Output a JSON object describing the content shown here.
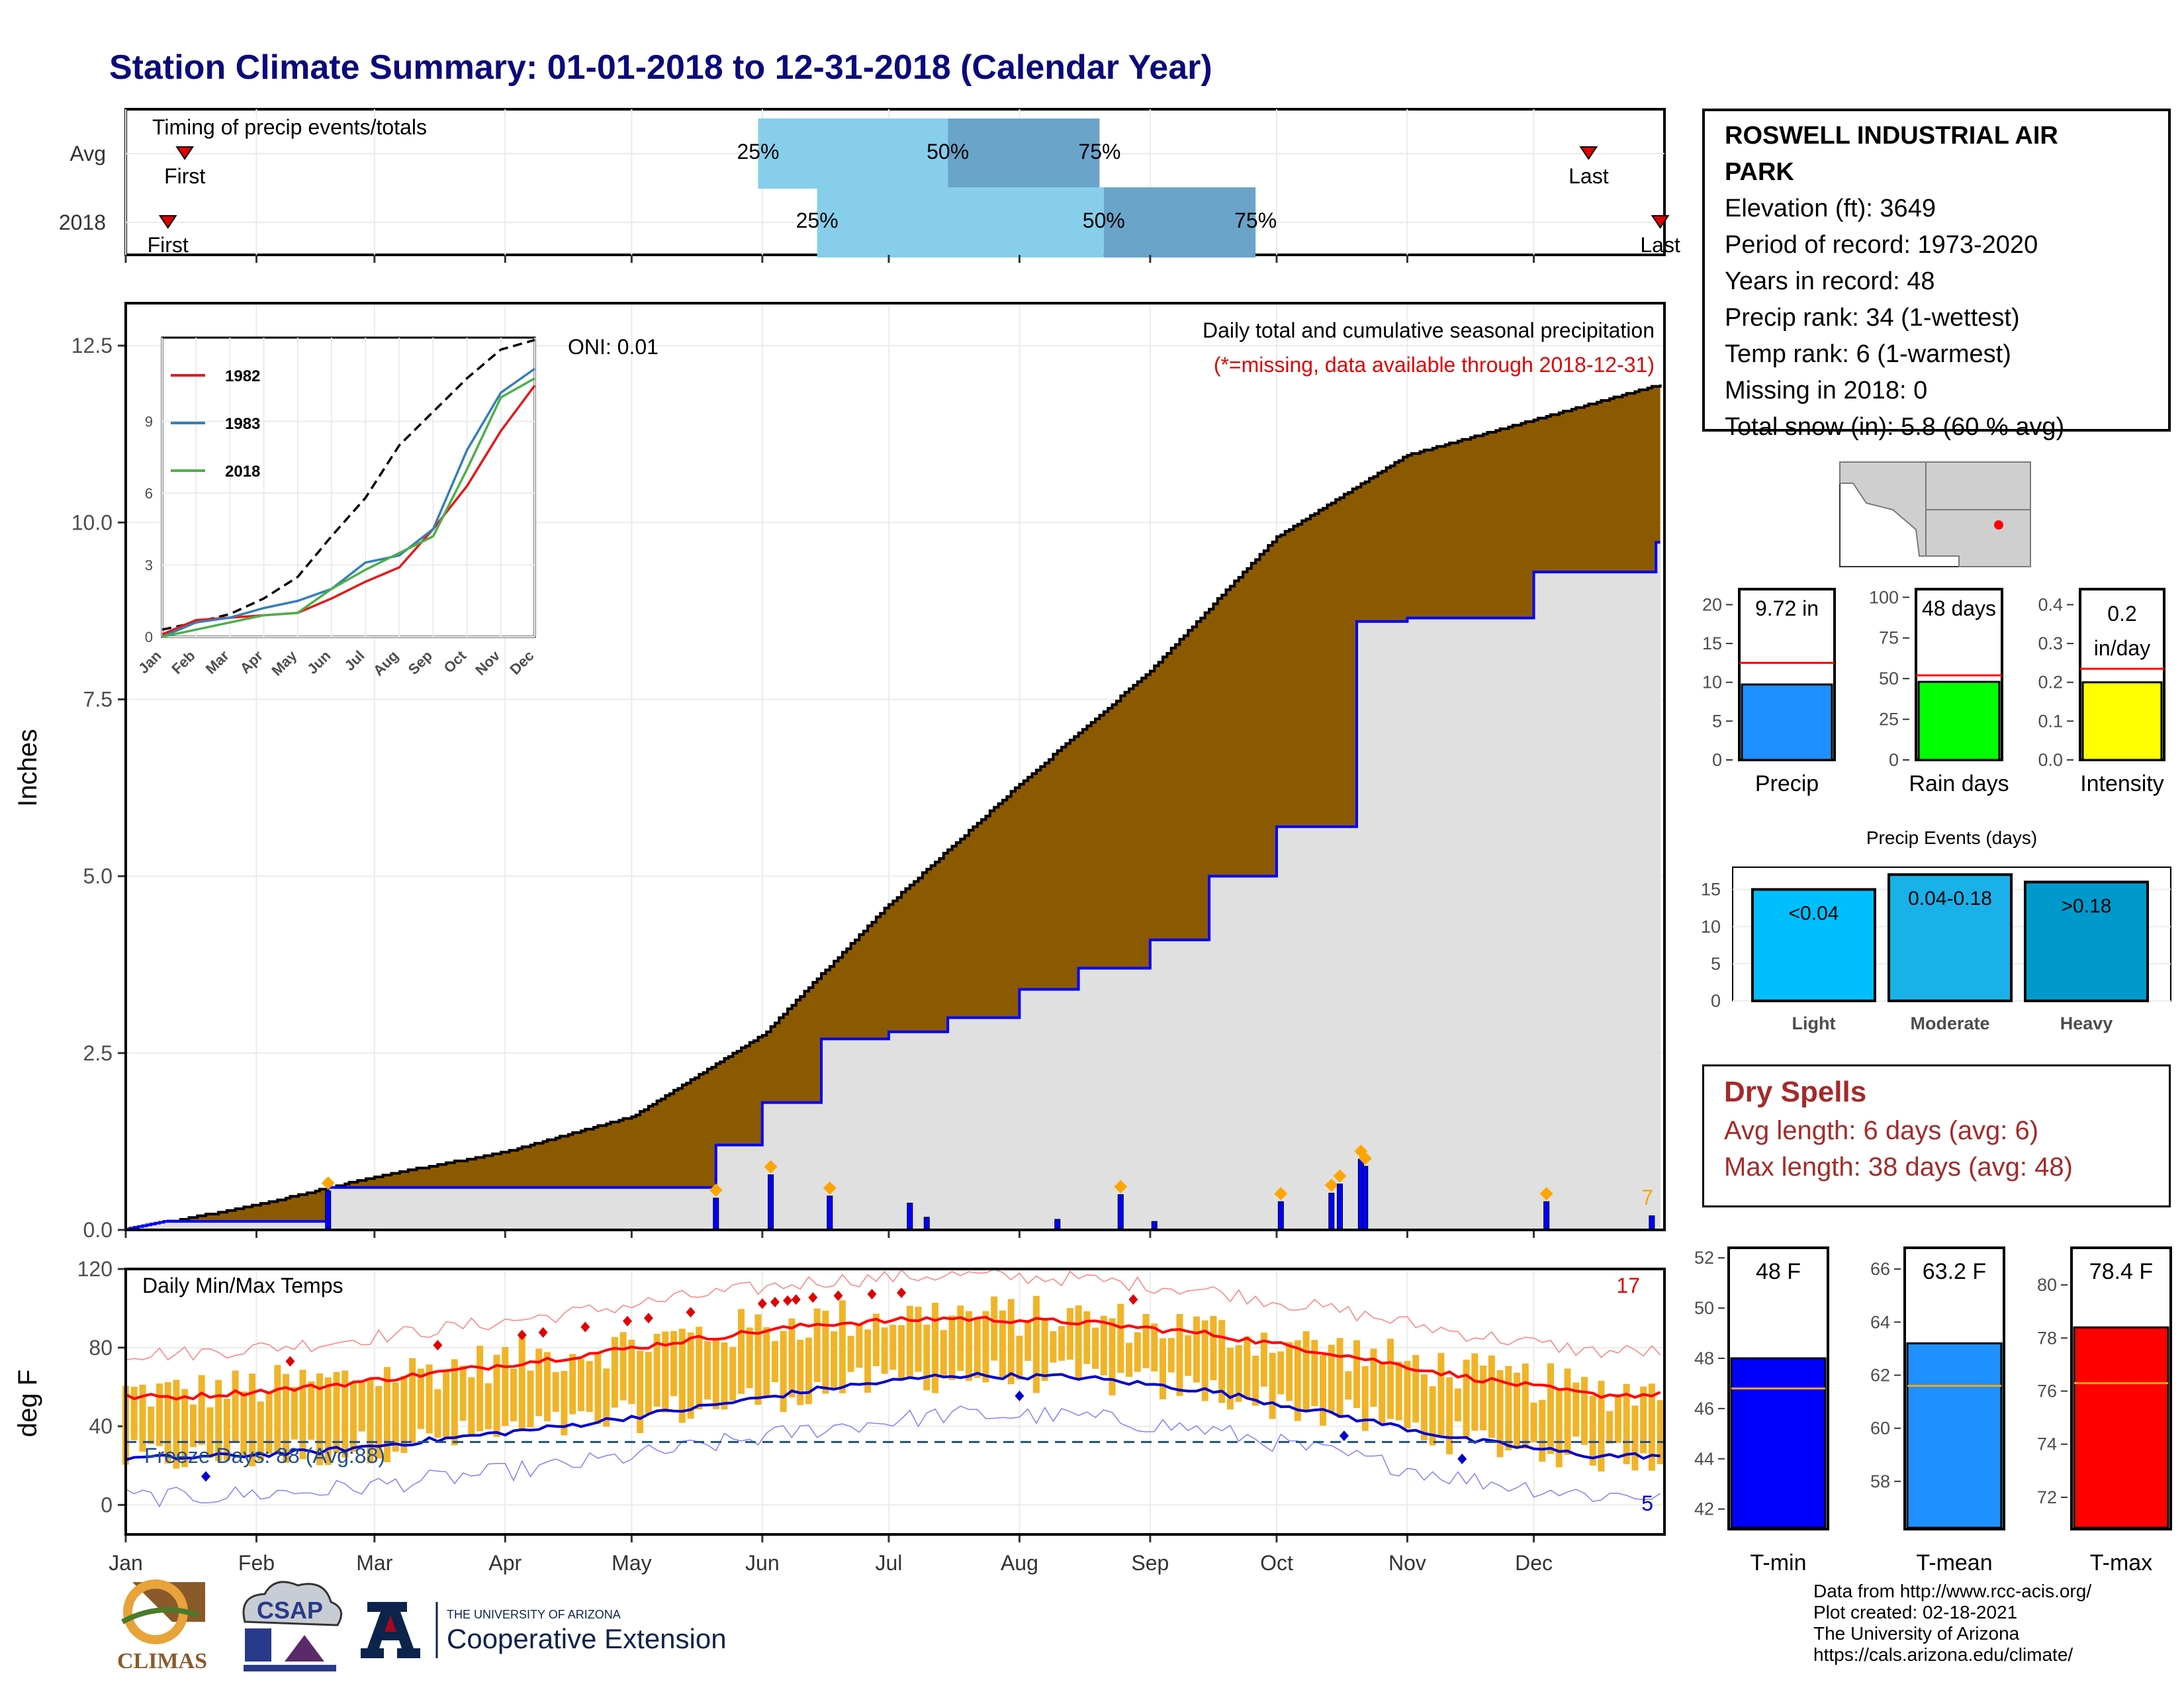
{
  "title": "Station Climate Summary: 01-01-2018 to 12-31-2018 (Calendar Year)",
  "timing": {
    "label": "Timing of precip events/totals",
    "rows": [
      "Avg",
      "2018"
    ],
    "first_label": "First",
    "last_label": "Last",
    "pct_labels": [
      "25%",
      "50%",
      "75%"
    ],
    "avg": {
      "first_doy": 15,
      "p25_doy": 151,
      "p50_doy": 196,
      "p75_doy": 232,
      "last_doy": 348
    },
    "y2018": {
      "first_doy": 11,
      "p25_doy": 165,
      "p50_doy": 233,
      "p75_doy": 269,
      "last_doy": 365
    }
  },
  "info": {
    "station": "ROSWELL INDUSTRIAL AIR PARK",
    "station_line1": "ROSWELL INDUSTRIAL AIR",
    "station_line2": "PARK",
    "lines": [
      "Elevation (ft): 3649",
      "Period of record: 1973-2020",
      "Years in record: 48",
      "Precip rank: 34 (1-wettest)",
      "Temp rank: 6 (1-warmest)",
      "Missing in 2018: 0",
      "Total snow (in): 5.8 (60 % avg)"
    ]
  },
  "precip_panel": {
    "ylabel": "Inches",
    "title": "Daily total and cumulative seasonal precipitation",
    "subtitle": "(*=missing, data available through 2018-12-31)",
    "oni": "ONI: 0.01",
    "yticks": [
      "0.0",
      "2.5",
      "5.0",
      "7.5",
      "10.0",
      "12.5"
    ],
    "corner_count": "7",
    "colors": {
      "avg_fill": "#8b5a00",
      "obs_fill": "#e0e0e0",
      "obs_line": "#0000ff",
      "bar": "#0000ff",
      "marker": "#ffa500"
    }
  },
  "months": [
    "Jan",
    "Feb",
    "Mar",
    "Apr",
    "May",
    "Jun",
    "Jul",
    "Aug",
    "Sep",
    "Oct",
    "Nov",
    "Dec"
  ],
  "inset": {
    "yticks": [
      "0",
      "3",
      "6",
      "9"
    ],
    "months": [
      "Jan",
      "Feb",
      "Mar",
      "Apr",
      "May",
      "Jun",
      "Jul",
      "Aug",
      "Sep",
      "Oct",
      "Nov",
      "Dec"
    ],
    "legend": [
      {
        "name": "1982",
        "color": "#e41a1c"
      },
      {
        "name": "1983",
        "color": "#377eb8"
      },
      {
        "name": "2018",
        "color": "#4daf4a"
      }
    ]
  },
  "temp_panel": {
    "ylabel": "deg F",
    "title": "Daily Min/Max Temps",
    "yticks": [
      "0",
      "40",
      "80",
      "120"
    ],
    "freeze_text": "Freeze Days: 88 (Avg:88)",
    "count_hot": "17",
    "count_cold": "5",
    "colors": {
      "bar": "#f0b429",
      "avg_max": "#ff0000",
      "avg_min": "#0000cd",
      "rec_max": "#ff8080",
      "rec_min": "#8080ff"
    }
  },
  "gauges": {
    "precip": {
      "value_text": "9.72 in",
      "label": "Precip",
      "yticks": [
        "0",
        "5",
        "10",
        "15",
        "20"
      ],
      "color": "#1e90ff"
    },
    "rain_days": {
      "value_text": "48 days",
      "label": "Rain days",
      "yticks": [
        "0",
        "25",
        "50",
        "75",
        "100"
      ],
      "color": "#00ff00"
    },
    "intensity": {
      "value_text_1": "0.2",
      "value_text_2": "in/day",
      "label": "Intensity",
      "yticks": [
        "0.0",
        "0.1",
        "0.2",
        "0.3",
        "0.4"
      ],
      "color": "#ffff00"
    }
  },
  "events": {
    "title": "Precip Events (days)",
    "yticks": [
      "0",
      "5",
      "10",
      "15"
    ],
    "bars": [
      {
        "label": "Light",
        "bin": "<0.04",
        "color": "#00bfff"
      },
      {
        "label": "Moderate",
        "bin": "0.04-0.18",
        "color": "#1ab0e8"
      },
      {
        "label": "Heavy",
        "bin": ">0.18",
        "color": "#0099cc"
      }
    ]
  },
  "dry_spells": {
    "title": "Dry Spells",
    "avg_length": "Avg length: 6 days (avg: 6)",
    "max_length": "Max length: 38 days (avg: 48)"
  },
  "temp_gauges": [
    {
      "value_text": "48 F",
      "label": "T-min",
      "yticks": [
        "42",
        "44",
        "46",
        "48",
        "50",
        "52"
      ],
      "color": "#0000ff"
    },
    {
      "value_text": "63.2 F",
      "label": "T-mean",
      "yticks": [
        "58",
        "60",
        "62",
        "64",
        "66"
      ],
      "color": "#1e90ff"
    },
    {
      "value_text": "78.4 F",
      "label": "T-max",
      "yticks": [
        "72",
        "74",
        "76",
        "78",
        "80"
      ],
      "color": "#ff0000"
    }
  ],
  "footer": {
    "lines": [
      "Data from http://www.rcc-acis.org/",
      "Plot created: 02-18-2021",
      "The University of Arizona",
      "https://cals.arizona.edu/climate/"
    ],
    "logo_climas": "CLIMAS",
    "logo_csap": "CSAP",
    "ua_small": "THE UNIVERSITY OF ARIZONA",
    "ua_big": "Cooperative Extension"
  },
  "chart_data": [
    {
      "type": "area",
      "title": "Daily total and cumulative seasonal precipitation",
      "ylabel": "Inches",
      "ylim": [
        0,
        13
      ],
      "series": [
        {
          "name": "",
          "x": [
            "2018-01-01",
            "2018-02-01",
            "2018-03-01",
            "2018-04-01",
            "2018-05-01",
            "2018-06-01",
            "2018-07-01",
            "2018-08-01",
            "2018-09-01",
            "2018-10-01",
            "2018-11-01",
            "2018-12-01",
            "2018-12-31"
          ],
          "values": [
            0.0,
            0.35,
            0.75,
            1.1,
            1.6,
            2.75,
            4.6,
            6.3,
            7.9,
            9.8,
            10.95,
            11.45,
            11.95
          ]
        },
        {
          "name": "",
          "x": [
            "2018-01-10",
            "2018-02-18",
            "2018-05-21",
            "2018-06-01",
            "2018-06-15",
            "2018-07-01",
            "2018-07-15",
            "2018-08-01",
            "2018-08-15",
            "2018-09-01",
            "2018-09-15",
            "2018-10-01",
            "2018-10-20",
            "2018-11-01",
            "2018-12-01",
            "2018-12-30"
          ],
          "values": [
            0.12,
            0.6,
            1.2,
            1.8,
            2.7,
            2.8,
            3.0,
            3.4,
            3.7,
            4.1,
            5.0,
            5.7,
            8.6,
            8.65,
            9.3,
            9.72
          ]
        }
      ]
    },
    {
      "type": "bar",
      "title": "",
      "x": [
        "2018-02-18",
        "2018-05-21",
        "2018-06-03",
        "2018-06-17",
        "2018-07-06",
        "2018-07-10",
        "2018-08-10",
        "2018-08-25",
        "2018-09-02",
        "2018-10-02",
        "2018-10-14",
        "2018-10-16",
        "2018-10-21",
        "2018-10-22",
        "2018-12-04",
        "2018-12-29"
      ],
      "values": [
        0.55,
        0.45,
        0.78,
        0.48,
        0.38,
        0.18,
        0.15,
        0.5,
        0.12,
        0.4,
        0.52,
        0.65,
        1.0,
        0.9,
        0.4,
        0.2
      ]
    },
    {
      "type": "line",
      "title": "",
      "x": [
        "Jan",
        "Feb",
        "Mar",
        "Apr",
        "May",
        "Jun",
        "Jul",
        "Aug",
        "Sep",
        "Oct",
        "Nov",
        "Dec"
      ],
      "ylim": [
        0,
        12
      ],
      "series": [
        {
          "name": "",
          "values": [
            0.3,
            0.6,
            0.95,
            1.6,
            2.5,
            4.2,
            5.8,
            8.0,
            9.4,
            10.8,
            12.0,
            12.4
          ]
        },
        {
          "name": "1982",
          "values": [
            0.1,
            0.7,
            0.8,
            0.9,
            1.0,
            1.6,
            2.3,
            2.9,
            4.5,
            6.3,
            8.6,
            10.5
          ]
        },
        {
          "name": "1983",
          "values": [
            0.0,
            0.6,
            0.8,
            1.2,
            1.5,
            2.0,
            3.1,
            3.4,
            4.5,
            7.8,
            10.2,
            11.2
          ]
        },
        {
          "name": "2018",
          "values": [
            0.0,
            0.3,
            0.6,
            0.9,
            1.0,
            2.0,
            2.8,
            3.5,
            4.2,
            7.0,
            10.0,
            10.8
          ]
        }
      ]
    },
    {
      "type": "line",
      "title": "Daily Min/Max Temps",
      "ylabel": "deg F",
      "ylim": [
        -10,
        120
      ],
      "x": [
        "Jan",
        "Feb",
        "Mar",
        "Apr",
        "May",
        "Jun",
        "Jul",
        "Aug",
        "Sep",
        "Oct",
        "Nov",
        "Dec"
      ],
      "series": [
        {
          "name": "",
          "values": [
            55,
            60,
            67,
            75,
            84,
            92,
            95,
            93,
            87,
            77,
            65,
            56
          ]
        },
        {
          "name": "",
          "values": [
            24,
            27,
            33,
            40,
            49,
            59,
            66,
            65,
            58,
            46,
            33,
            25
          ]
        }
      ]
    },
    {
      "type": "bar",
      "title": "Precip Events (days)",
      "categories": [
        "Light",
        "Moderate",
        "Heavy"
      ],
      "values": [
        15,
        17,
        16
      ],
      "ylim": [
        0,
        17
      ]
    },
    {
      "type": "bar",
      "title": "",
      "categories": [
        "Precip",
        "Rain days",
        "Intensity"
      ],
      "values": [
        9.72,
        48,
        0.2
      ],
      "averages": [
        12.5,
        52,
        0.235
      ]
    },
    {
      "type": "bar",
      "title": "",
      "categories": [
        "T-min",
        "T-mean",
        "T-max"
      ],
      "values": [
        48,
        63.2,
        78.4
      ],
      "averages": [
        46.8,
        61.6,
        76.3
      ]
    }
  ]
}
